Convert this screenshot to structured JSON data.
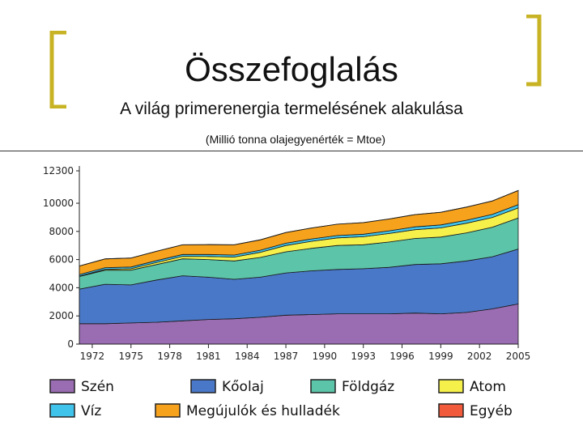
{
  "slide": {
    "title": "Összefoglalás",
    "subtitle": "A világ primerenergia termelésének alakulása",
    "unit_note": "(Millió tonna olajegyenérték = Mtoe)"
  },
  "colors": {
    "bracket": "#c8b324",
    "legend_border": "#222222"
  },
  "chart_data": {
    "type": "area",
    "stacked": true,
    "x": [
      1971,
      1973,
      1975,
      1977,
      1979,
      1981,
      1983,
      1985,
      1987,
      1989,
      1991,
      1993,
      1995,
      1997,
      1999,
      2001,
      2003,
      2005
    ],
    "x_ticks": [
      "1972",
      "1975",
      "1978",
      "1981",
      "1984",
      "1987",
      "1990",
      "1993",
      "1996",
      "1999",
      "2002",
      "2005"
    ],
    "x_tick_values": [
      1972,
      1975,
      1978,
      1981,
      1984,
      1987,
      1990,
      1993,
      1996,
      1999,
      2002,
      2005
    ],
    "xlim": [
      1971,
      2005
    ],
    "ylim": [
      0,
      12300
    ],
    "y_ticks": [
      "0",
      "2000",
      "4000",
      "6000",
      "8000",
      "10000",
      "12300"
    ],
    "y_tick_values": [
      0,
      2000,
      4000,
      6000,
      8000,
      10000,
      12300
    ],
    "grid": false,
    "legend_position": "bottom",
    "series": [
      {
        "name": "Szén",
        "color": "#9a6db3",
        "values": [
          1450,
          1450,
          1500,
          1550,
          1650,
          1750,
          1800,
          1900,
          2050,
          2100,
          2150,
          2150,
          2150,
          2200,
          2150,
          2250,
          2500,
          2850
        ]
      },
      {
        "name": "Kőolaj",
        "color": "#4a78c8",
        "values": [
          2450,
          2800,
          2700,
          3000,
          3200,
          3000,
          2800,
          2850,
          3000,
          3100,
          3150,
          3200,
          3300,
          3450,
          3550,
          3650,
          3700,
          3900
        ]
      },
      {
        "name": "Földgáz",
        "color": "#5cc4a8",
        "values": [
          900,
          1000,
          1050,
          1100,
          1200,
          1250,
          1300,
          1400,
          1500,
          1600,
          1700,
          1700,
          1800,
          1850,
          1900,
          2000,
          2100,
          2200
        ]
      },
      {
        "name": "Atom",
        "color": "#f5f04a",
        "values": [
          30,
          60,
          100,
          150,
          180,
          220,
          280,
          360,
          450,
          500,
          540,
          570,
          600,
          620,
          650,
          680,
          690,
          720
        ]
      },
      {
        "name": "Víz",
        "color": "#40c4ec",
        "values": [
          110,
          115,
          120,
          130,
          135,
          140,
          145,
          150,
          160,
          165,
          170,
          180,
          190,
          200,
          210,
          215,
          220,
          230
        ]
      },
      {
        "name": "Megújulók és hulladék",
        "color": "#f7a21c",
        "values": [
          600,
          620,
          640,
          660,
          680,
          700,
          720,
          740,
          760,
          780,
          800,
          820,
          840,
          870,
          900,
          930,
          950,
          1000
        ]
      },
      {
        "name": "Egyéb",
        "color": "#f25a3c",
        "values": [
          5,
          5,
          5,
          5,
          5,
          5,
          5,
          5,
          5,
          5,
          5,
          5,
          5,
          5,
          5,
          5,
          5,
          10
        ]
      }
    ],
    "legend_order": [
      "Szén",
      "Kőolaj",
      "Földgáz",
      "Atom",
      "Víz",
      "Megújulók és hulladék",
      "Egyéb"
    ]
  }
}
